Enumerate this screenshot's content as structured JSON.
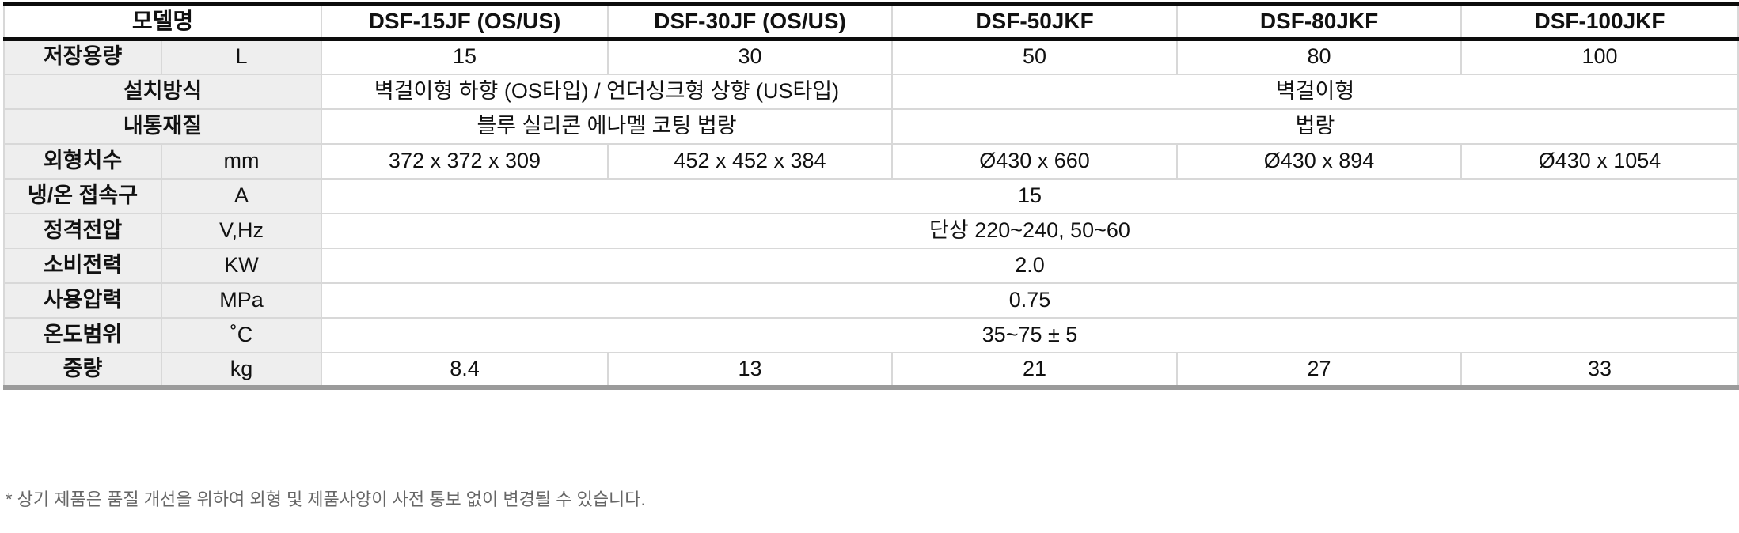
{
  "table": {
    "header": {
      "model_label": "모델명",
      "models": [
        "DSF-15JF (OS/US)",
        "DSF-30JF (OS/US)",
        "DSF-50JKF",
        "DSF-80JKF",
        "DSF-100JKF"
      ]
    },
    "rows": {
      "capacity": {
        "label": "저장용량",
        "unit": "L",
        "values": [
          "15",
          "30",
          "50",
          "80",
          "100"
        ]
      },
      "install": {
        "label": "설치방식",
        "value_left": "벽걸이형 하향 (OS타입) / 언더싱크형 상향 (US타입)",
        "value_right": "벽걸이형"
      },
      "tank": {
        "label": "내통재질",
        "value_left": "블루 실리콘 에나멜 코팅 법랑",
        "value_right": "법랑"
      },
      "dimensions": {
        "label": "외형치수",
        "unit": "mm",
        "values": [
          "372 x 372 x 309",
          "452 x 452 x 384",
          "Ø430 x 660",
          "Ø430 x 894",
          "Ø430 x 1054"
        ]
      },
      "connection": {
        "label": "냉/온 접속구",
        "unit": "A",
        "value": "15"
      },
      "voltage": {
        "label": "정격전압",
        "unit": "V,Hz",
        "value": "단상 220~240, 50~60"
      },
      "power": {
        "label": "소비전력",
        "unit": "KW",
        "value": "2.0"
      },
      "pressure": {
        "label": "사용압력",
        "unit": "MPa",
        "value": "0.75"
      },
      "temperature": {
        "label": "온도범위",
        "unit": "˚C",
        "value": "35~75 ± 5"
      },
      "weight": {
        "label": "중량",
        "unit": "kg",
        "values": [
          "8.4",
          "13",
          "21",
          "27",
          "33"
        ]
      }
    },
    "colors": {
      "header_border": "#0c0c0c",
      "grid_border": "#d8d8d8",
      "bottom_border": "#9b9b9b",
      "label_bg": "#eeeeee"
    }
  },
  "footer": {
    "note": "* 상기 제품은 품질 개선을 위하여 외형 및 제품사양이 사전 통보 없이 변경될 수 있습니다."
  }
}
